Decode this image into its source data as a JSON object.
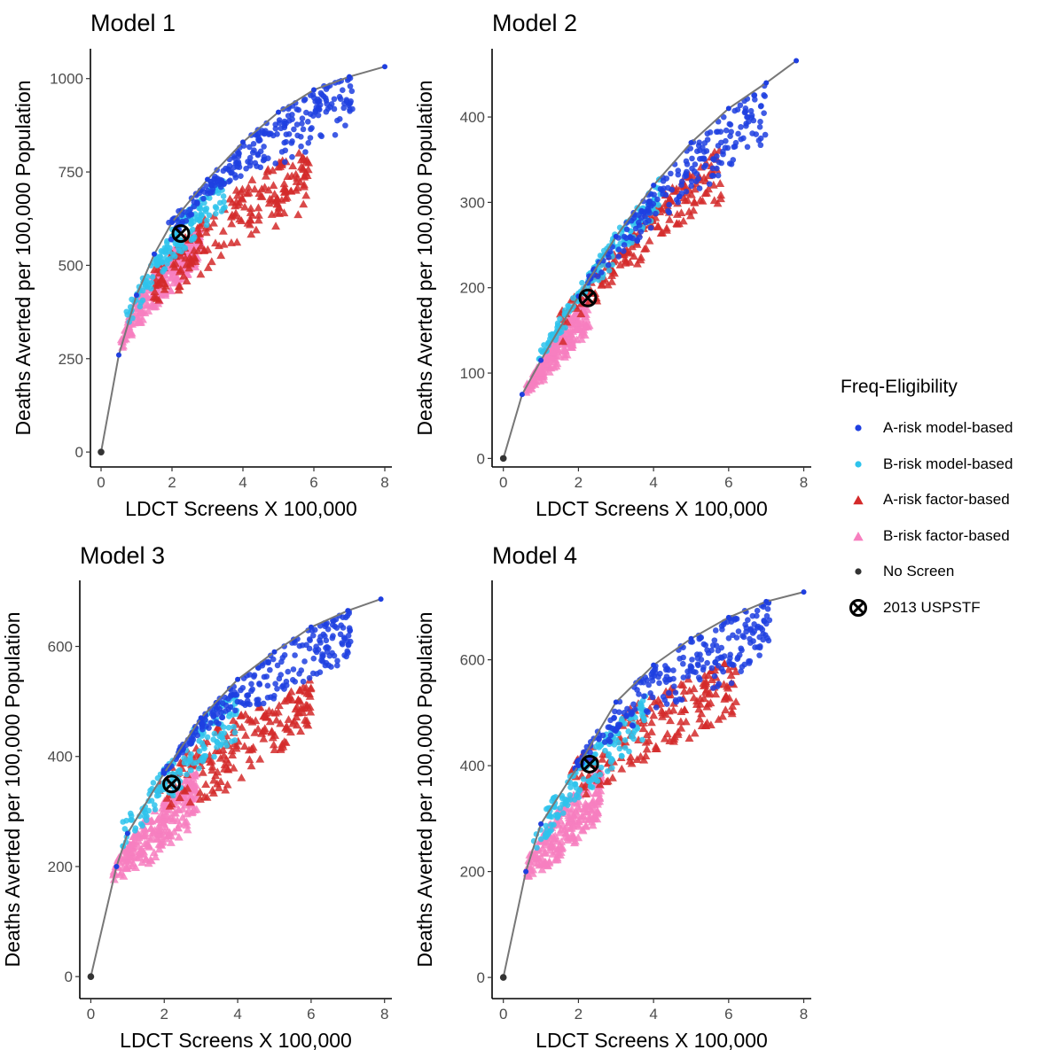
{
  "figure": {
    "x_label": "LDCT Screens X 100,000",
    "y_label": "Deaths Averted per 100,000 Population"
  },
  "legend": {
    "title": "Freq-Eligibility",
    "items": [
      {
        "label": "A-risk model-based",
        "shape": "circle",
        "color": "#1f3fe0"
      },
      {
        "label": "B-risk model-based",
        "shape": "circle",
        "color": "#2ec3ec"
      },
      {
        "label": "A-risk factor-based",
        "shape": "triangle",
        "color": "#d42a2a"
      },
      {
        "label": "B-risk factor-based",
        "shape": "triangle",
        "color": "#f77fbf"
      },
      {
        "label": "No Screen",
        "shape": "circle",
        "color": "#333333"
      },
      {
        "label": "2013 USPSTF",
        "shape": "circled-x",
        "color": "#000000"
      }
    ]
  },
  "chart_data": [
    {
      "type": "scatter",
      "title": "Model 1",
      "xlim": [
        -0.3,
        8.2
      ],
      "ylim": [
        -40,
        1080
      ],
      "xticks": [
        0,
        2,
        4,
        6,
        8
      ],
      "yticks": [
        0,
        250,
        500,
        750,
        1000
      ],
      "no_screen": [
        0,
        0
      ],
      "uspstf": [
        2.25,
        585
      ],
      "frontier": [
        [
          0,
          0
        ],
        [
          0.5,
          260
        ],
        [
          1,
          420
        ],
        [
          1.5,
          530
        ],
        [
          2,
          615
        ],
        [
          3,
          730
        ],
        [
          4,
          830
        ],
        [
          5,
          910
        ],
        [
          6,
          970
        ],
        [
          7,
          1005
        ],
        [
          8,
          1032
        ]
      ],
      "clouds": [
        {
          "series": "B-risk factor-based",
          "x": [
            0.55,
            2.8
          ],
          "lo": [
            [
              0.55,
              262
            ],
            [
              1.0,
              330
            ],
            [
              2.0,
              430
            ],
            [
              2.8,
              500
            ]
          ],
          "hi": [
            [
              0.55,
              300
            ],
            [
              1.0,
              420
            ],
            [
              2.0,
              540
            ],
            [
              2.8,
              600
            ]
          ],
          "n": 260,
          "seed": 11
        },
        {
          "series": "A-risk factor-based",
          "x": [
            1.3,
            5.9
          ],
          "lo": [
            [
              1.3,
              360
            ],
            [
              2.5,
              450
            ],
            [
              4,
              560
            ],
            [
              5.9,
              650
            ]
          ],
          "hi": [
            [
              1.3,
              470
            ],
            [
              2.5,
              590
            ],
            [
              4,
              720
            ],
            [
              5.9,
              830
            ]
          ],
          "n": 200,
          "seed": 12
        },
        {
          "series": "B-risk model-based",
          "x": [
            0.7,
            3.5
          ],
          "lo": [
            [
              0.7,
              320
            ],
            [
              1.5,
              450
            ],
            [
              2.5,
              560
            ],
            [
              3.5,
              650
            ]
          ],
          "hi": [
            [
              0.7,
              380
            ],
            [
              1.5,
              530
            ],
            [
              2.5,
              660
            ],
            [
              3.5,
              740
            ]
          ],
          "n": 170,
          "seed": 13
        },
        {
          "series": "A-risk model-based",
          "x": [
            1.9,
            7.1
          ],
          "lo": [
            [
              1.9,
              560
            ],
            [
              3,
              680
            ],
            [
              4,
              740
            ],
            [
              5,
              770
            ],
            [
              6,
              800
            ],
            [
              7,
              880
            ]
          ],
          "hi": [
            [
              1.9,
              615
            ],
            [
              3,
              730
            ],
            [
              4,
              830
            ],
            [
              5,
              910
            ],
            [
              6,
              970
            ],
            [
              7,
              1005
            ]
          ],
          "n": 240,
          "seed": 14
        }
      ]
    },
    {
      "type": "scatter",
      "title": "Model 2",
      "xlim": [
        -0.3,
        8.2
      ],
      "ylim": [
        -10,
        480
      ],
      "xticks": [
        0,
        2,
        4,
        6,
        8
      ],
      "yticks": [
        0,
        100,
        200,
        300,
        400
      ],
      "no_screen": [
        0,
        0
      ],
      "uspstf": [
        2.25,
        188
      ],
      "frontier": [
        [
          0,
          0
        ],
        [
          0.5,
          75
        ],
        [
          1,
          115
        ],
        [
          2,
          190
        ],
        [
          3,
          260
        ],
        [
          4,
          320
        ],
        [
          5,
          370
        ],
        [
          6,
          410
        ],
        [
          7,
          440
        ],
        [
          7.8,
          466
        ]
      ],
      "clouds": [
        {
          "series": "B-risk factor-based",
          "x": [
            0.6,
            2.3
          ],
          "lo": [
            [
              0.6,
              70
            ],
            [
              1.5,
              110
            ],
            [
              2.3,
              150
            ]
          ],
          "hi": [
            [
              0.6,
              85
            ],
            [
              1.5,
              150
            ],
            [
              2.3,
              195
            ]
          ],
          "n": 210,
          "seed": 21
        },
        {
          "series": "A-risk factor-based",
          "x": [
            1.5,
            5.8
          ],
          "lo": [
            [
              1.5,
              130
            ],
            [
              3,
              205
            ],
            [
              4.5,
              260
            ],
            [
              5.8,
              300
            ]
          ],
          "hi": [
            [
              1.5,
              170
            ],
            [
              3,
              245
            ],
            [
              4.5,
              320
            ],
            [
              5.8,
              365
            ]
          ],
          "n": 180,
          "seed": 22
        },
        {
          "series": "B-risk model-based",
          "x": [
            0.9,
            4.2
          ],
          "lo": [
            [
              0.9,
              105
            ],
            [
              2,
              175
            ],
            [
              3,
              230
            ],
            [
              4.2,
              290
            ]
          ],
          "hi": [
            [
              0.9,
              120
            ],
            [
              2,
              200
            ],
            [
              3,
              265
            ],
            [
              4.2,
              330
            ]
          ],
          "n": 160,
          "seed": 23
        },
        {
          "series": "A-risk model-based",
          "x": [
            2.2,
            7.0
          ],
          "lo": [
            [
              2.2,
              200
            ],
            [
              3.5,
              250
            ],
            [
              5,
              305
            ],
            [
              7,
              370
            ]
          ],
          "hi": [
            [
              2.2,
              210
            ],
            [
              3.5,
              290
            ],
            [
              5,
              370
            ],
            [
              7,
              440
            ]
          ],
          "n": 200,
          "seed": 24
        }
      ]
    },
    {
      "type": "scatter",
      "title": "Model 3",
      "xlim": [
        -0.3,
        8.2
      ],
      "ylim": [
        -40,
        720
      ],
      "xticks": [
        0,
        2,
        4,
        6,
        8
      ],
      "yticks": [
        0,
        200,
        400,
        600
      ],
      "no_screen": [
        0,
        0
      ],
      "uspstf": [
        2.2,
        350
      ],
      "frontier": [
        [
          0,
          0
        ],
        [
          0.7,
          200
        ],
        [
          1,
          260
        ],
        [
          2,
          370
        ],
        [
          3,
          470
        ],
        [
          4,
          540
        ],
        [
          5,
          590
        ],
        [
          6,
          635
        ],
        [
          7,
          665
        ],
        [
          7.9,
          686
        ]
      ],
      "clouds": [
        {
          "series": "B-risk factor-based",
          "x": [
            0.6,
            2.9
          ],
          "lo": [
            [
              0.6,
              170
            ],
            [
              1.5,
              200
            ],
            [
              2.9,
              280
            ]
          ],
          "hi": [
            [
              0.6,
              200
            ],
            [
              1.5,
              290
            ],
            [
              2.9,
              380
            ]
          ],
          "n": 250,
          "seed": 31
        },
        {
          "series": "A-risk factor-based",
          "x": [
            1.8,
            6.0
          ],
          "lo": [
            [
              1.8,
              300
            ],
            [
              3.5,
              330
            ],
            [
              5,
              400
            ],
            [
              6,
              450
            ]
          ],
          "hi": [
            [
              1.8,
              360
            ],
            [
              3.5,
              460
            ],
            [
              5,
              500
            ],
            [
              6,
              540
            ]
          ],
          "n": 190,
          "seed": 32
        },
        {
          "series": "B-risk model-based",
          "x": [
            0.8,
            4.0
          ],
          "lo": [
            [
              0.8,
              230
            ],
            [
              2,
              310
            ],
            [
              3,
              380
            ],
            [
              4,
              430
            ]
          ],
          "hi": [
            [
              0.8,
              275
            ],
            [
              2,
              380
            ],
            [
              3,
              470
            ],
            [
              4,
              520
            ]
          ],
          "n": 170,
          "seed": 33
        },
        {
          "series": "A-risk model-based",
          "x": [
            1.9,
            7.1
          ],
          "lo": [
            [
              1.9,
              360
            ],
            [
              3,
              440
            ],
            [
              4,
              480
            ],
            [
              5,
              500
            ],
            [
              6,
              520
            ],
            [
              7,
              570
            ]
          ],
          "hi": [
            [
              1.9,
              370
            ],
            [
              3,
              470
            ],
            [
              4,
              540
            ],
            [
              5,
              590
            ],
            [
              6,
              635
            ],
            [
              7,
              665
            ]
          ],
          "n": 240,
          "seed": 34
        }
      ]
    },
    {
      "type": "scatter",
      "title": "Model 4",
      "xlim": [
        -0.3,
        8.2
      ],
      "ylim": [
        -40,
        750
      ],
      "xticks": [
        0,
        2,
        4,
        6,
        8
      ],
      "yticks": [
        0,
        200,
        400,
        600
      ],
      "no_screen": [
        0,
        0
      ],
      "uspstf": [
        2.3,
        403
      ],
      "frontier": [
        [
          0,
          0
        ],
        [
          0.6,
          200
        ],
        [
          1,
          290
        ],
        [
          2,
          400
        ],
        [
          3,
          520
        ],
        [
          4,
          590
        ],
        [
          5,
          640
        ],
        [
          6,
          680
        ],
        [
          7,
          710
        ],
        [
          8,
          728
        ]
      ],
      "clouds": [
        {
          "series": "B-risk factor-based",
          "x": [
            0.6,
            2.6
          ],
          "lo": [
            [
              0.6,
              185
            ],
            [
              1.5,
              220
            ],
            [
              2.6,
              300
            ]
          ],
          "hi": [
            [
              0.6,
              220
            ],
            [
              1.5,
              320
            ],
            [
              2.6,
              400
            ]
          ],
          "n": 240,
          "seed": 41
        },
        {
          "series": "A-risk factor-based",
          "x": [
            1.8,
            6.2
          ],
          "lo": [
            [
              1.8,
              330
            ],
            [
              3.5,
              390
            ],
            [
              5,
              450
            ],
            [
              6.2,
              500
            ]
          ],
          "hi": [
            [
              1.8,
              400
            ],
            [
              3.5,
              520
            ],
            [
              5,
              570
            ],
            [
              6.2,
              600
            ]
          ],
          "n": 180,
          "seed": 42
        },
        {
          "series": "B-risk model-based",
          "x": [
            0.8,
            3.8
          ],
          "lo": [
            [
              0.8,
              230
            ],
            [
              2,
              330
            ],
            [
              3,
              400
            ],
            [
              3.8,
              450
            ]
          ],
          "hi": [
            [
              0.8,
              290
            ],
            [
              2,
              400
            ],
            [
              3,
              480
            ],
            [
              3.8,
              540
            ]
          ],
          "n": 160,
          "seed": 43
        },
        {
          "series": "A-risk model-based",
          "x": [
            1.8,
            7.1
          ],
          "lo": [
            [
              1.8,
              380
            ],
            [
              3,
              450
            ],
            [
              4,
              500
            ],
            [
              5,
              520
            ],
            [
              6,
              550
            ],
            [
              7,
              620
            ]
          ],
          "hi": [
            [
              1.8,
              390
            ],
            [
              3,
              520
            ],
            [
              4,
              590
            ],
            [
              5,
              640
            ],
            [
              6,
              680
            ],
            [
              7,
              710
            ]
          ],
          "n": 240,
          "seed": 44
        }
      ]
    }
  ]
}
